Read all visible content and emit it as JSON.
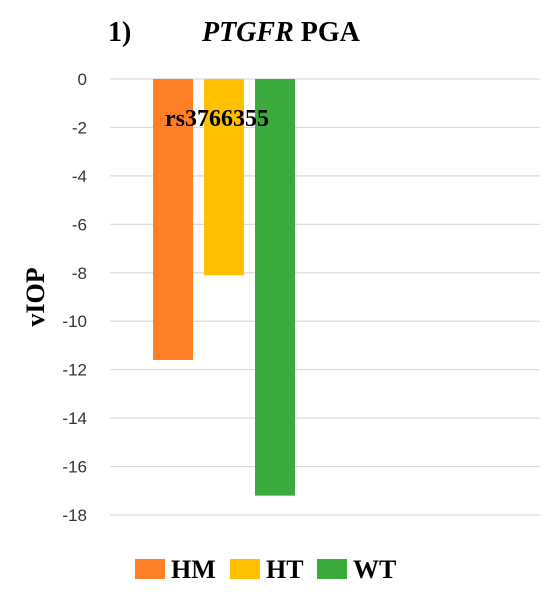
{
  "chart_data": {
    "type": "bar",
    "title_number": "1)",
    "title_gene": "PTGFR",
    "title_rest": " PGA",
    "annotation": "rs3766355",
    "ylabel": "vIOP",
    "xlabel": "",
    "ylim": [
      -18,
      0
    ],
    "yticks": [
      0,
      -2,
      -4,
      -6,
      -8,
      -10,
      -12,
      -14,
      -16,
      -18
    ],
    "grid": true,
    "legend_position": "bottom",
    "series": [
      {
        "name": "HM",
        "values": [
          -11.6
        ],
        "color": "#FF7F27"
      },
      {
        "name": "HT",
        "values": [
          -8.1
        ],
        "color": "#FFC000"
      },
      {
        "name": "WT",
        "values": [
          -17.2
        ],
        "color": "#3CAA3C"
      }
    ]
  }
}
